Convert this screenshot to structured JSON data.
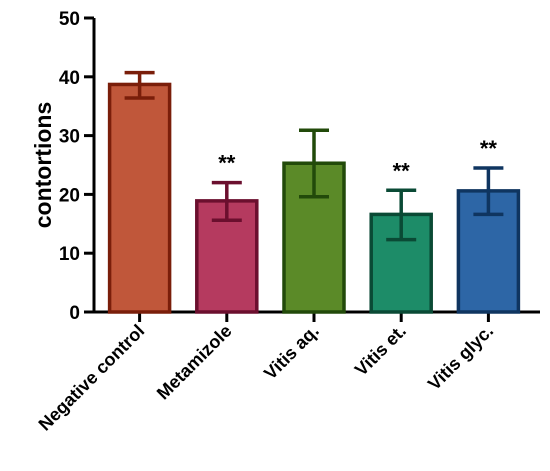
{
  "chart_data": {
    "type": "bar",
    "ylabel": "contortions",
    "xlabel": "",
    "ylim": [
      0,
      50
    ],
    "yticks": [
      0,
      10,
      20,
      30,
      40,
      50
    ],
    "error_bars": "mean ± error",
    "bars": [
      {
        "category": "Negative control",
        "value": 38.7,
        "error_low": 36.4,
        "error_high": 40.7,
        "significance": "",
        "fill": "#c0573a",
        "stroke": "#7a1e0a"
      },
      {
        "category": "Metamizole",
        "value": 18.9,
        "error_low": 15.6,
        "error_high": 22.0,
        "significance": "**",
        "fill": "#b53a5f",
        "stroke": "#6b0f2e"
      },
      {
        "category": "Vitis aq.",
        "value": 25.3,
        "error_low": 19.6,
        "error_high": 30.9,
        "significance": "",
        "fill": "#5b8a28",
        "stroke": "#224a0a"
      },
      {
        "category": "Vitis et.",
        "value": 16.6,
        "error_low": 12.3,
        "error_high": 20.7,
        "significance": "**",
        "fill": "#1d8c68",
        "stroke": "#0a4a35"
      },
      {
        "category": "Vitis glyc.",
        "value": 20.6,
        "error_low": 16.6,
        "error_high": 24.5,
        "significance": "**",
        "fill": "#2d66a6",
        "stroke": "#0f3560"
      }
    ]
  }
}
